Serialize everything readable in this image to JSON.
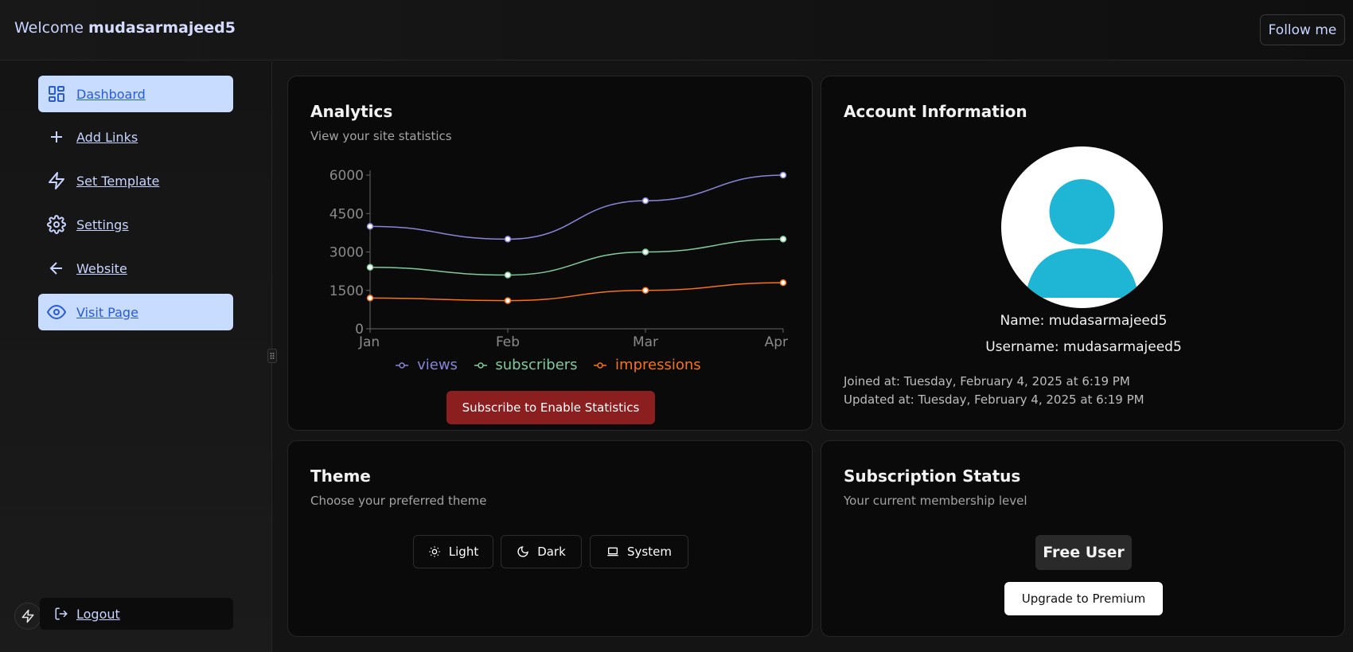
{
  "header": {
    "welcome_prefix": "Welcome",
    "username": "mudasarmajeed5",
    "follow_label": "Follow me"
  },
  "sidebar": {
    "items": [
      {
        "label": "Dashboard",
        "icon": "dashboard-grid-icon",
        "active": true
      },
      {
        "label": "Add Links",
        "icon": "plus-icon",
        "active": false
      },
      {
        "label": "Set Template",
        "icon": "lightning-icon",
        "active": false
      },
      {
        "label": "Settings",
        "icon": "gear-icon",
        "active": false
      },
      {
        "label": "Website",
        "icon": "arrow-left-icon",
        "active": false
      },
      {
        "label": "Visit Page",
        "icon": "eye-icon",
        "active": true
      }
    ],
    "logout_label": "Logout"
  },
  "analytics": {
    "title": "Analytics",
    "subtitle": "View your site statistics",
    "subscribe_label": "Subscribe to Enable Statistics"
  },
  "chart_data": {
    "type": "line",
    "categories": [
      "Jan",
      "Feb",
      "Mar",
      "Apr"
    ],
    "ylim": [
      0,
      6000
    ],
    "yticks": [
      0,
      1500,
      3000,
      4500,
      6000
    ],
    "series": [
      {
        "name": "views",
        "values": [
          4000,
          3500,
          5000,
          6000
        ],
        "color": "#8884d8"
      },
      {
        "name": "subscribers",
        "values": [
          2400,
          2100,
          3000,
          3500
        ],
        "color": "#82ca9d"
      },
      {
        "name": "impressions",
        "values": [
          1200,
          1100,
          1500,
          1800
        ],
        "color": "#f97316"
      }
    ],
    "legend_position": "bottom"
  },
  "account": {
    "title": "Account Information",
    "name_line": "Name: mudasarmajeed5",
    "username_line": "Username: mudasarmajeed5",
    "joined_line": "Joined at:  Tuesday, February 4, 2025 at 6:19 PM",
    "updated_line": "Updated at:  Tuesday, February 4, 2025 at 6:19 PM"
  },
  "theme": {
    "title": "Theme",
    "subtitle": "Choose your preferred theme",
    "options": [
      "Light",
      "Dark",
      "System"
    ]
  },
  "subscription": {
    "title": "Subscription Status",
    "subtitle": "Your current membership level",
    "status": "Free User",
    "upgrade_label": "Upgrade to Premium"
  }
}
